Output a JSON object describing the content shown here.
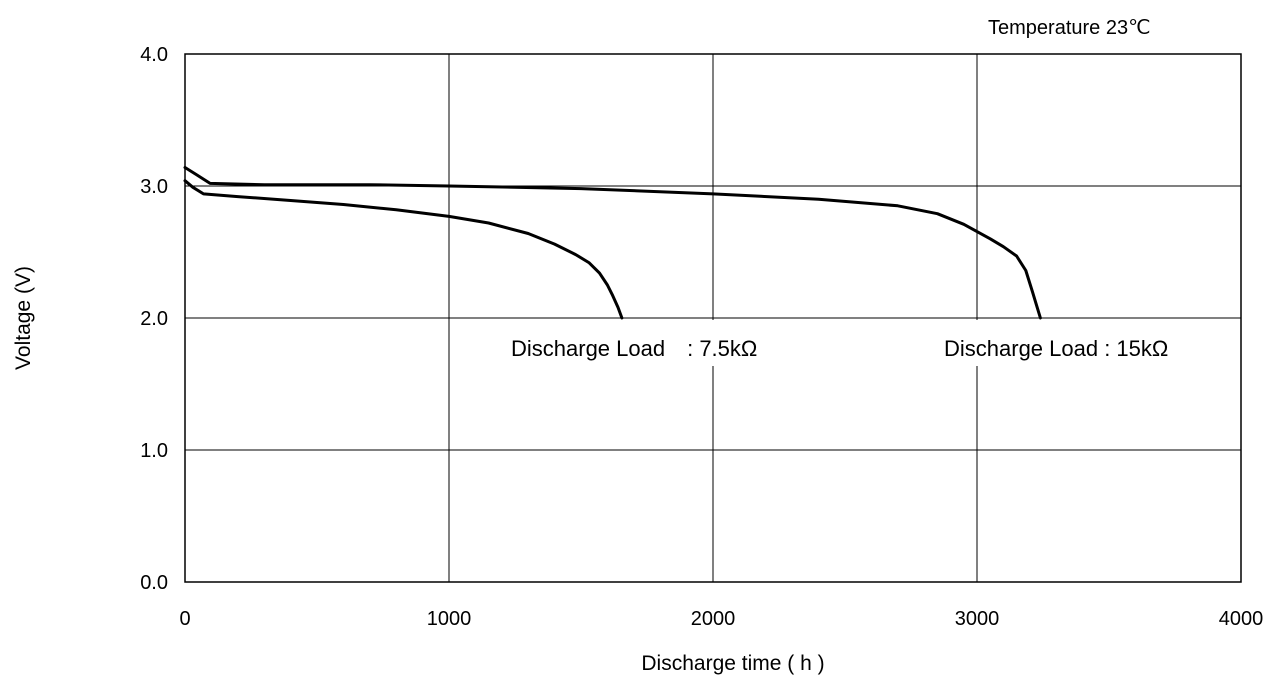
{
  "chart_data": {
    "type": "line",
    "title": "",
    "annotation_top": "Temperature 23℃",
    "xlabel": "Discharge time ( h )",
    "ylabel": "Voltage  (V)",
    "xlim": [
      0,
      4000
    ],
    "ylim": [
      0,
      4
    ],
    "x_ticks": [
      "0",
      "1000",
      "2000",
      "3000",
      "4000"
    ],
    "y_ticks": [
      "0.0",
      "1.0",
      "2.0",
      "3.0",
      "4.0"
    ],
    "grid": true,
    "series": [
      {
        "label": "Discharge Load　:  7.5kΩ",
        "points": [
          [
            0,
            3.04
          ],
          [
            30,
            2.99
          ],
          [
            70,
            2.94
          ],
          [
            200,
            2.92
          ],
          [
            400,
            2.89
          ],
          [
            600,
            2.86
          ],
          [
            800,
            2.82
          ],
          [
            1000,
            2.77
          ],
          [
            1150,
            2.72
          ],
          [
            1300,
            2.64
          ],
          [
            1400,
            2.56
          ],
          [
            1480,
            2.48
          ],
          [
            1530,
            2.42
          ],
          [
            1570,
            2.34
          ],
          [
            1600,
            2.25
          ],
          [
            1620,
            2.17
          ],
          [
            1640,
            2.08
          ],
          [
            1655,
            2.0
          ]
        ]
      },
      {
        "label": "Discharge Load  :   15kΩ",
        "points": [
          [
            0,
            3.14
          ],
          [
            40,
            3.09
          ],
          [
            95,
            3.02
          ],
          [
            300,
            3.01
          ],
          [
            700,
            3.01
          ],
          [
            1000,
            3.0
          ],
          [
            1500,
            2.98
          ],
          [
            2000,
            2.94
          ],
          [
            2400,
            2.9
          ],
          [
            2700,
            2.85
          ],
          [
            2850,
            2.79
          ],
          [
            2950,
            2.71
          ],
          [
            3050,
            2.6
          ],
          [
            3100,
            2.54
          ],
          [
            3150,
            2.47
          ],
          [
            3185,
            2.36
          ],
          [
            3210,
            2.2
          ],
          [
            3225,
            2.1
          ],
          [
            3240,
            2.0
          ]
        ]
      }
    ]
  }
}
